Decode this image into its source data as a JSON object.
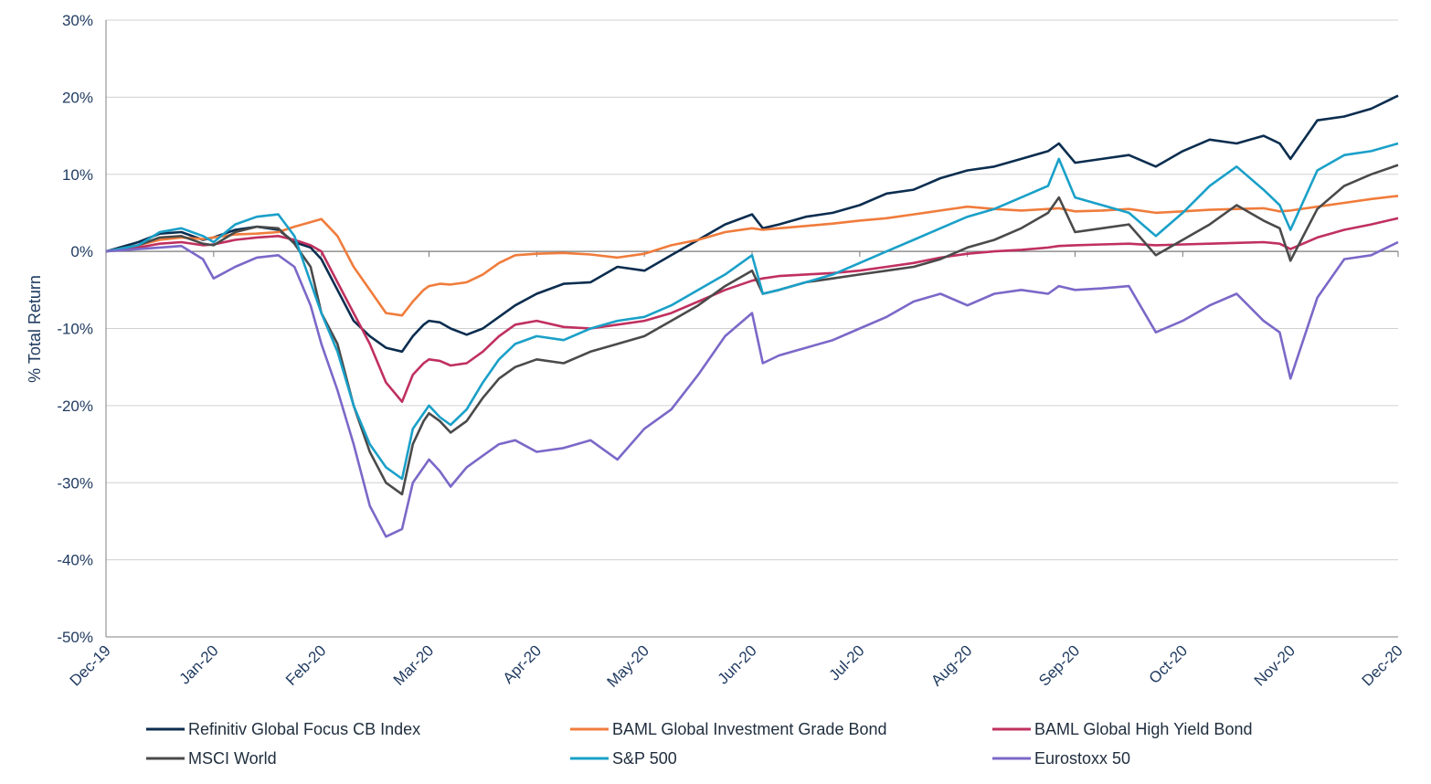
{
  "chart_data": {
    "type": "line",
    "title": "",
    "xlabel": "",
    "ylabel": "% Total Return",
    "ylim": [
      -50,
      30
    ],
    "yticks": [
      30,
      20,
      10,
      0,
      -10,
      -20,
      -30,
      -40,
      -50
    ],
    "ytick_labels": [
      "30%",
      "20%",
      "10%",
      "0%",
      "-10%",
      "-20%",
      "-30%",
      "-40%",
      "-50%"
    ],
    "x_categories": [
      "Dec-19",
      "Jan-20",
      "Feb-20",
      "Mar-20",
      "Apr-20",
      "May-20",
      "Jun-20",
      "Jul-20",
      "Aug-20",
      "Sep-20",
      "Oct-20",
      "Nov-20",
      "Dec-20"
    ],
    "grid": "horizontal",
    "legend_position": "bottom",
    "x": [
      0,
      0.3,
      0.5,
      0.7,
      0.9,
      1.0,
      1.2,
      1.4,
      1.6,
      1.75,
      1.9,
      2.0,
      2.15,
      2.3,
      2.45,
      2.6,
      2.75,
      2.85,
      2.95,
      3.0,
      3.1,
      3.2,
      3.35,
      3.5,
      3.65,
      3.8,
      4.0,
      4.25,
      4.5,
      4.75,
      5.0,
      5.25,
      5.5,
      5.75,
      6.0,
      6.1,
      6.25,
      6.5,
      6.75,
      7.0,
      7.25,
      7.5,
      7.75,
      8.0,
      8.25,
      8.5,
      8.75,
      8.85,
      9.0,
      9.25,
      9.5,
      9.75,
      10.0,
      10.25,
      10.5,
      10.75,
      10.9,
      11.0,
      11.25,
      11.5,
      11.75,
      12.0
    ],
    "series": [
      {
        "name": "Refinitiv Global Focus CB Index",
        "color": "#0b2d4f",
        "values": [
          0,
          1.2,
          2.3,
          2.5,
          1.5,
          1.8,
          2.8,
          3.2,
          2.8,
          1.2,
          0.5,
          -1.0,
          -5.0,
          -9.0,
          -11.0,
          -12.5,
          -13.0,
          -11.0,
          -9.5,
          -9.0,
          -9.2,
          -10.0,
          -10.8,
          -10.0,
          -8.5,
          -7.0,
          -5.5,
          -4.2,
          -4.0,
          -2.0,
          -2.5,
          -0.5,
          1.5,
          3.5,
          4.8,
          3.0,
          3.5,
          4.5,
          5.0,
          6.0,
          7.5,
          8.0,
          9.5,
          10.5,
          11.0,
          12.0,
          13.0,
          14.0,
          11.5,
          12.0,
          12.5,
          11.0,
          13.0,
          14.5,
          14.0,
          15.0,
          14.0,
          12.0,
          17.0,
          17.5,
          18.5,
          20.2
        ]
      },
      {
        "name": "BAML Global Investment Grade Bond",
        "color": "#f07c3c",
        "values": [
          0,
          0.8,
          1.5,
          1.8,
          1.6,
          1.8,
          2.2,
          2.3,
          2.5,
          3.2,
          3.8,
          4.2,
          2.0,
          -2.0,
          -5.0,
          -8.0,
          -8.3,
          -6.5,
          -5.0,
          -4.5,
          -4.2,
          -4.3,
          -4.0,
          -3.0,
          -1.5,
          -0.5,
          -0.3,
          -0.2,
          -0.4,
          -0.8,
          -0.3,
          0.8,
          1.5,
          2.5,
          3.0,
          2.8,
          3.0,
          3.3,
          3.6,
          4.0,
          4.3,
          4.8,
          5.3,
          5.8,
          5.5,
          5.3,
          5.5,
          5.6,
          5.2,
          5.3,
          5.5,
          5.0,
          5.2,
          5.4,
          5.5,
          5.6,
          5.2,
          5.3,
          5.8,
          6.3,
          6.8,
          7.2
        ]
      },
      {
        "name": "BAML Global High Yield Bond",
        "color": "#c0305f",
        "values": [
          0,
          0.5,
          1.0,
          1.2,
          0.8,
          0.9,
          1.5,
          1.8,
          2.0,
          1.5,
          0.8,
          0.0,
          -4.0,
          -8.0,
          -12.0,
          -17.0,
          -19.5,
          -16.0,
          -14.5,
          -14.0,
          -14.2,
          -14.8,
          -14.5,
          -13.0,
          -11.0,
          -9.5,
          -9.0,
          -9.8,
          -10.0,
          -9.5,
          -9.0,
          -8.0,
          -6.5,
          -5.0,
          -3.8,
          -3.5,
          -3.2,
          -3.0,
          -2.8,
          -2.5,
          -2.0,
          -1.5,
          -0.8,
          -0.3,
          0.0,
          0.2,
          0.5,
          0.7,
          0.8,
          0.9,
          1.0,
          0.8,
          0.9,
          1.0,
          1.1,
          1.2,
          1.0,
          0.3,
          1.8,
          2.8,
          3.5,
          4.3
        ]
      },
      {
        "name": "MSCI World",
        "color": "#4a4a4a",
        "values": [
          0,
          0.8,
          1.8,
          2.0,
          1.0,
          0.8,
          2.5,
          3.2,
          3.0,
          1.0,
          -2.0,
          -8.0,
          -12.0,
          -20.0,
          -26.0,
          -30.0,
          -31.5,
          -25.0,
          -22.0,
          -21.0,
          -22.0,
          -23.5,
          -22.0,
          -19.0,
          -16.5,
          -15.0,
          -14.0,
          -14.5,
          -13.0,
          -12.0,
          -11.0,
          -9.0,
          -7.0,
          -4.5,
          -2.5,
          -5.5,
          -5.0,
          -4.0,
          -3.5,
          -3.0,
          -2.5,
          -2.0,
          -1.0,
          0.5,
          1.5,
          3.0,
          5.0,
          7.0,
          2.5,
          3.0,
          3.5,
          -0.5,
          1.5,
          3.5,
          6.0,
          4.0,
          3.0,
          -1.2,
          5.5,
          8.5,
          10.0,
          11.2
        ]
      },
      {
        "name": "S&P 500",
        "color": "#1aa0c8",
        "values": [
          0,
          0.8,
          2.5,
          3.0,
          2.0,
          1.2,
          3.5,
          4.5,
          4.8,
          2.0,
          -4.0,
          -8.0,
          -13.0,
          -20.0,
          -25.0,
          -28.0,
          -29.5,
          -23.0,
          -21.0,
          -20.0,
          -21.5,
          -22.5,
          -20.5,
          -17.0,
          -14.0,
          -12.0,
          -11.0,
          -11.5,
          -10.0,
          -9.0,
          -8.5,
          -7.0,
          -5.0,
          -3.0,
          -0.5,
          -5.5,
          -5.0,
          -4.0,
          -3.0,
          -1.5,
          0.0,
          1.5,
          3.0,
          4.5,
          5.5,
          7.0,
          8.5,
          12.0,
          7.0,
          6.0,
          5.0,
          2.0,
          5.0,
          8.5,
          11.0,
          8.0,
          6.0,
          2.8,
          10.5,
          12.5,
          13.0,
          14.0
        ]
      },
      {
        "name": "Eurostoxx 50",
        "color": "#7b68c8",
        "values": [
          0,
          0.3,
          0.5,
          0.7,
          -1.0,
          -3.5,
          -2.0,
          -0.8,
          -0.5,
          -2.0,
          -7.0,
          -12.0,
          -18.0,
          -25.0,
          -33.0,
          -37.0,
          -36.0,
          -30.0,
          -28.0,
          -27.0,
          -28.5,
          -30.5,
          -28.0,
          -26.5,
          -25.0,
          -24.5,
          -26.0,
          -25.5,
          -24.5,
          -27.0,
          -23.0,
          -20.5,
          -16.0,
          -11.0,
          -8.0,
          -14.5,
          -13.5,
          -12.5,
          -11.5,
          -10.0,
          -8.5,
          -6.5,
          -5.5,
          -7.0,
          -5.5,
          -5.0,
          -5.5,
          -4.5,
          -5.0,
          -4.8,
          -4.5,
          -10.5,
          -9.0,
          -7.0,
          -5.5,
          -9.0,
          -10.5,
          -16.5,
          -6.0,
          -1.0,
          -0.5,
          1.2
        ]
      }
    ]
  }
}
